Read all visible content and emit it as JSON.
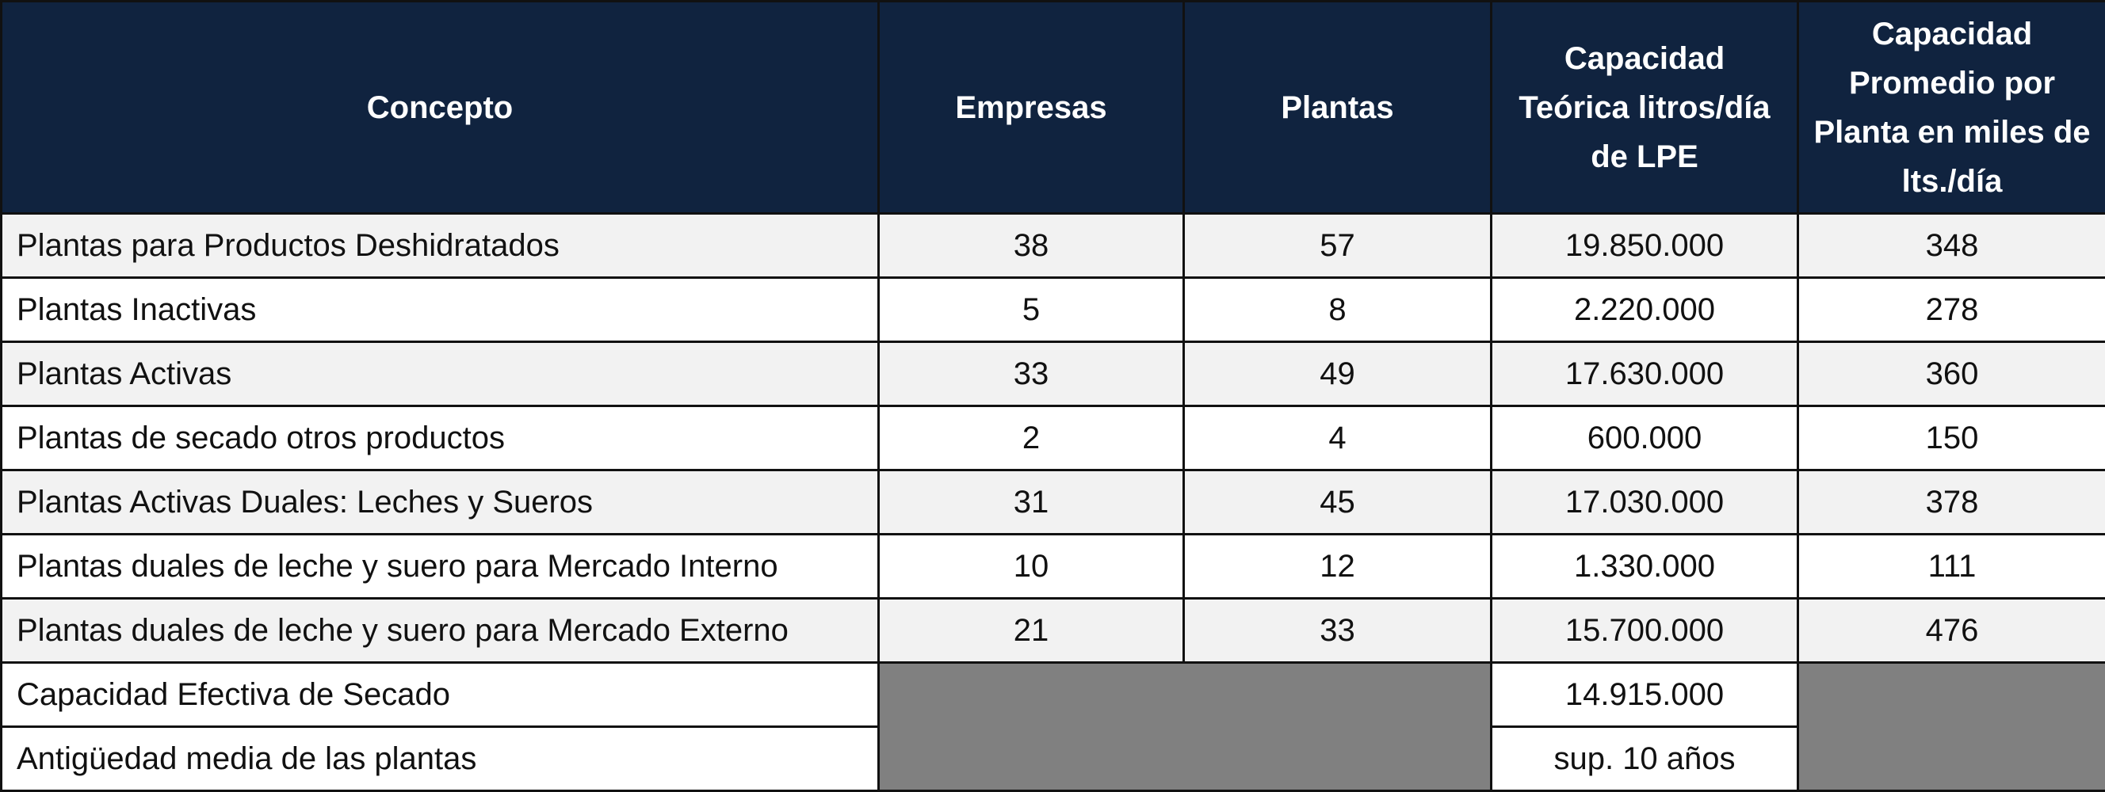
{
  "table": {
    "headers": [
      "Concepto",
      "Empresas",
      "Plantas",
      "Capacidad Teórica litros/día de LPE",
      "Capacidad Promedio por Planta en miles de lts./día"
    ],
    "rows": [
      {
        "concepto": "Plantas para Productos Deshidratados",
        "empresas": "38",
        "plantas": "57",
        "capacidad_teorica": "19.850.000",
        "capacidad_promedio": "348"
      },
      {
        "concepto": "Plantas Inactivas",
        "empresas": "5",
        "plantas": "8",
        "capacidad_teorica": "2.220.000",
        "capacidad_promedio": "278"
      },
      {
        "concepto": "Plantas Activas",
        "empresas": "33",
        "plantas": "49",
        "capacidad_teorica": "17.630.000",
        "capacidad_promedio": "360"
      },
      {
        "concepto": "Plantas de secado otros productos",
        "empresas": "2",
        "plantas": "4",
        "capacidad_teorica": "600.000",
        "capacidad_promedio": "150"
      },
      {
        "concepto": "Plantas Activas Duales: Leches y Sueros",
        "empresas": "31",
        "plantas": "45",
        "capacidad_teorica": "17.030.000",
        "capacidad_promedio": "378"
      },
      {
        "concepto": "Plantas duales de leche y suero para Mercado Interno",
        "empresas": "10",
        "plantas": "12",
        "capacidad_teorica": "1.330.000",
        "capacidad_promedio": "111"
      },
      {
        "concepto": "Plantas duales de leche y suero para Mercado Externo",
        "empresas": "21",
        "plantas": "33",
        "capacidad_teorica": "15.700.000",
        "capacidad_promedio": "476"
      }
    ],
    "footer_rows": [
      {
        "concepto": "Capacidad Efectiva de Secado",
        "capacidad_teorica": "14.915.000"
      },
      {
        "concepto": "Antigüedad media de las plantas",
        "capacidad_teorica": "sup. 10 años"
      }
    ],
    "colors": {
      "header_bg": "#10233f",
      "header_text": "#ffffff",
      "shaded_row": "#f2f2f2",
      "empty_cell": "#808080"
    }
  }
}
